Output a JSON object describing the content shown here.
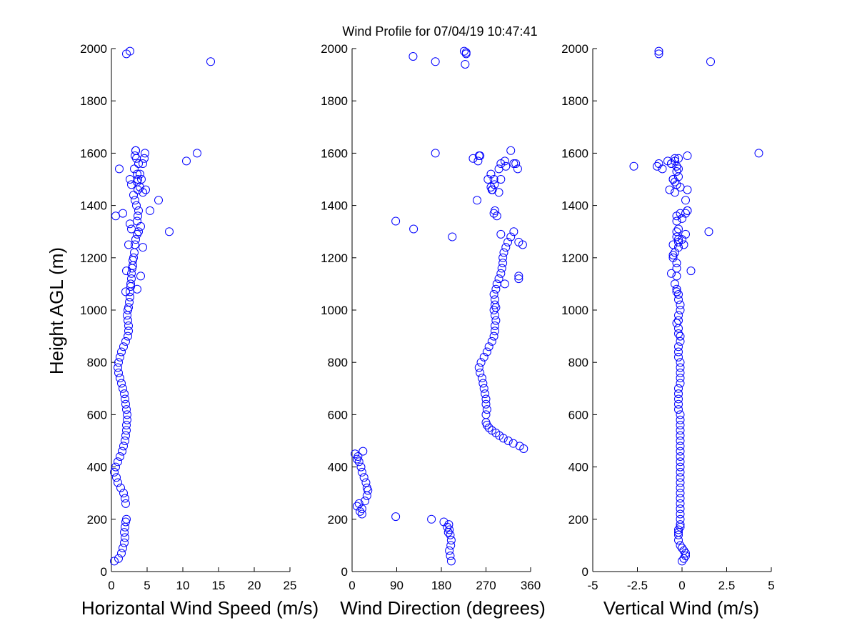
{
  "title": "Wind Profile for  07/04/19 10:47:41",
  "marker_color": "#0000ff",
  "chart_data": [
    {
      "type": "scatter",
      "xlabel": "Horizontal Wind Speed (m/s)",
      "ylabel": "Height AGL (m)",
      "xlim": [
        0,
        25
      ],
      "ylim": [
        0,
        2000
      ],
      "xticks": [
        "0",
        "5",
        "10",
        "15",
        "20",
        "25"
      ],
      "yticks": [
        "0",
        "200",
        "400",
        "600",
        "800",
        "1000",
        "1200",
        "1400",
        "1600",
        "1800",
        "2000"
      ],
      "grid": false,
      "x": [
        0.4,
        1.0,
        1.4,
        1.6,
        1.8,
        1.9,
        1.8,
        1.9,
        2.0,
        2.1,
        2.0,
        1.9,
        1.7,
        1.3,
        0.9,
        0.7,
        0.4,
        0.6,
        0.9,
        1.2,
        1.5,
        1.7,
        1.9,
        2.0,
        2.1,
        2.1,
        2.2,
        2.2,
        2.1,
        2.0,
        1.9,
        1.8,
        1.6,
        1.4,
        1.2,
        1.0,
        0.9,
        1.0,
        1.2,
        1.4,
        1.7,
        2.0,
        2.3,
        2.4,
        2.4,
        2.3,
        2.2,
        2.3,
        2.4,
        2.5,
        2.6,
        2.6,
        2.7,
        2.7,
        2.8,
        2.8,
        2.9,
        3.0,
        3.0,
        3.1,
        3.2,
        3.3,
        3.4,
        3.6,
        3.8,
        4.1,
        3.6,
        3.7,
        3.8,
        3.5,
        3.3,
        3.1,
        3.7,
        2.8,
        4.2,
        3.6,
        3.2,
        3.8,
        3.5,
        4.7,
        3.4,
        2.1,
        4.1,
        3.6,
        2.0,
        4.4,
        8.1,
        2.8,
        2.6,
        0.6,
        5.4,
        1.6,
        4.4,
        4.0,
        6.6,
        4.8,
        3.6,
        4.0,
        2.6,
        3.7,
        1.1,
        4.4,
        4.6,
        10.5,
        3.3,
        12.0,
        3.4,
        13.9,
        2.1,
        2.6,
        2.4
      ],
      "y": [
        40,
        50,
        70,
        90,
        110,
        130,
        150,
        170,
        190,
        200,
        260,
        280,
        300,
        320,
        340,
        360,
        380,
        400,
        420,
        440,
        460,
        480,
        500,
        520,
        540,
        560,
        580,
        600,
        620,
        640,
        660,
        680,
        700,
        720,
        740,
        760,
        780,
        800,
        820,
        840,
        860,
        880,
        900,
        920,
        940,
        960,
        980,
        1000,
        1010,
        1030,
        1050,
        1070,
        1090,
        1100,
        1120,
        1140,
        1160,
        1170,
        1190,
        1200,
        1220,
        1250,
        1270,
        1290,
        1300,
        1320,
        1340,
        1360,
        1380,
        1400,
        1420,
        1440,
        1460,
        1480,
        1500,
        1520,
        1540,
        1560,
        1580,
        1600,
        1610,
        1150,
        1130,
        1080,
        1070,
        1240,
        1300,
        1310,
        1330,
        1360,
        1380,
        1370,
        1450,
        1470,
        1420,
        1460,
        1490,
        1520,
        1500,
        1500,
        1540,
        1560,
        1580,
        1570,
        1590,
        1600,
        1610,
        1950,
        1980,
        1990,
        1250
      ],
      "note_hidden": ""
    },
    {
      "type": "scatter",
      "xlabel": "Wind Direction (degrees)",
      "ylabel": "",
      "xlim": [
        0,
        360
      ],
      "ylim": [
        0,
        2000
      ],
      "xticks": [
        "0",
        "90",
        "180",
        "270",
        "360"
      ],
      "yticks": [
        "0",
        "200",
        "400",
        "600",
        "800",
        "1000",
        "1200",
        "1400",
        "1600",
        "1800",
        "2000"
      ],
      "grid": false,
      "x": [
        200,
        198,
        196,
        199,
        200,
        198,
        196,
        195,
        194,
        192,
        185,
        160,
        88,
        20,
        16,
        10,
        14,
        20,
        26,
        30,
        32,
        30,
        28,
        24,
        20,
        18,
        14,
        12,
        10,
        6,
        22,
        346,
        338,
        325,
        315,
        305,
        297,
        290,
        282,
        276,
        272,
        270,
        270,
        272,
        270,
        270,
        268,
        266,
        264,
        262,
        258,
        256,
        260,
        266,
        272,
        276,
        282,
        286,
        288,
        288,
        290,
        288,
        286,
        288,
        288,
        286,
        290,
        292,
        296,
        300,
        302,
        304,
        304,
        306,
        310,
        314,
        320,
        326,
        336,
        344,
        336,
        336,
        300,
        308,
        290,
        286,
        292,
        282,
        287,
        280,
        300,
        310,
        330,
        256,
        244,
        124,
        88,
        202,
        288,
        296,
        326,
        252,
        274,
        283,
        308,
        320,
        168,
        300,
        334,
        286,
        280,
        296,
        254,
        258,
        123,
        168,
        230,
        226,
        228,
        230
      ],
      "y": [
        40,
        60,
        80,
        100,
        120,
        140,
        160,
        180,
        150,
        170,
        190,
        200,
        210,
        220,
        230,
        250,
        260,
        240,
        270,
        290,
        310,
        320,
        340,
        360,
        380,
        400,
        420,
        440,
        430,
        450,
        460,
        470,
        480,
        490,
        500,
        510,
        520,
        530,
        540,
        550,
        560,
        570,
        600,
        620,
        640,
        660,
        680,
        700,
        720,
        740,
        760,
        780,
        800,
        820,
        840,
        860,
        880,
        900,
        920,
        940,
        960,
        980,
        1000,
        1020,
        1040,
        1060,
        1080,
        1100,
        1120,
        1140,
        1160,
        1180,
        1200,
        1220,
        1240,
        1260,
        1280,
        1300,
        1260,
        1250,
        1120,
        1130,
        1290,
        1100,
        1010,
        1370,
        1360,
        1460,
        1480,
        1520,
        1500,
        1550,
        1560,
        1590,
        1580,
        1310,
        1340,
        1280,
        1380,
        1450,
        1560,
        1420,
        1500,
        1460,
        1570,
        1610,
        1600,
        1560,
        1540,
        1500,
        1470,
        1540,
        1570,
        1590,
        1970,
        1950,
        1980,
        1990,
        1940,
        1985
      ]
    },
    {
      "type": "scatter",
      "xlabel": "Vertical Wind (m/s)",
      "ylabel": "",
      "xlim": [
        -5,
        5
      ],
      "ylim": [
        0,
        2000
      ],
      "xticks": [
        "-5",
        "-2.5",
        "0",
        "2.5",
        "5"
      ],
      "xtick_values": [
        -5,
        -2.5,
        0,
        2.5,
        5
      ],
      "yticks": [
        "0",
        "200",
        "400",
        "600",
        "800",
        "1000",
        "1200",
        "1400",
        "1600",
        "1800",
        "2000"
      ],
      "grid": false,
      "x": [
        0.0,
        0.1,
        0.2,
        0.2,
        0.1,
        0.0,
        -0.1,
        -0.2,
        -0.2,
        -0.2,
        -0.2,
        -0.1,
        -0.1,
        -0.1,
        -0.1,
        -0.1,
        -0.1,
        -0.1,
        -0.1,
        -0.1,
        -0.1,
        -0.1,
        -0.1,
        -0.1,
        -0.1,
        -0.1,
        -0.1,
        -0.1,
        -0.1,
        -0.1,
        -0.1,
        -0.1,
        -0.1,
        -0.1,
        -0.2,
        -0.2,
        -0.2,
        -0.2,
        -0.2,
        -0.1,
        -0.1,
        -0.1,
        -0.1,
        -0.1,
        -0.2,
        -0.2,
        -0.2,
        -0.1,
        -0.1,
        -0.2,
        -0.2,
        -0.3,
        -0.2,
        -0.2,
        -0.1,
        -0.1,
        -0.2,
        -0.2,
        -0.3,
        -0.3,
        -0.4,
        -0.3,
        -0.3,
        -0.3,
        -0.5,
        -0.5,
        -0.4,
        -0.2,
        -0.2,
        -0.3,
        -0.3,
        -0.2,
        -0.5,
        -0.2,
        0.0,
        0.2,
        0.0,
        -0.3,
        -0.1,
        0.3,
        0.5,
        0.2,
        0.2,
        0.3,
        -0.6,
        -0.3,
        1.5,
        0.1,
        0.3,
        -0.1,
        -0.4,
        -0.7,
        -0.3,
        -1.3,
        -0.5,
        -0.4,
        -0.5,
        -0.2,
        -0.3,
        -0.2,
        -0.3,
        -0.4,
        -0.6,
        -0.8,
        -1.1,
        -1.4,
        -2.7,
        -0.6,
        -0.4,
        -0.2,
        0.3,
        4.3,
        1.6,
        -1.3,
        -1.3
      ],
      "y": [
        40,
        50,
        60,
        70,
        80,
        90,
        100,
        120,
        140,
        150,
        160,
        170,
        180,
        200,
        220,
        240,
        260,
        280,
        300,
        320,
        340,
        360,
        380,
        400,
        420,
        440,
        460,
        480,
        500,
        520,
        540,
        560,
        580,
        600,
        620,
        640,
        660,
        680,
        700,
        720,
        740,
        760,
        780,
        800,
        820,
        840,
        860,
        880,
        900,
        910,
        930,
        950,
        960,
        980,
        1000,
        1020,
        1040,
        1060,
        1070,
        1080,
        1100,
        1130,
        1160,
        1180,
        1200,
        1210,
        1220,
        1240,
        1270,
        1280,
        1300,
        1310,
        1250,
        1260,
        1270,
        1290,
        1350,
        1360,
        1370,
        1380,
        1150,
        1420,
        1370,
        1380,
        1140,
        1340,
        1300,
        1250,
        1460,
        1470,
        1450,
        1460,
        1480,
        1560,
        1500,
        1490,
        1500,
        1510,
        1530,
        1540,
        1550,
        1580,
        1560,
        1570,
        1540,
        1550,
        1550,
        1560,
        1570,
        1580,
        1590,
        1600,
        1950,
        1980,
        1990
      ]
    }
  ]
}
